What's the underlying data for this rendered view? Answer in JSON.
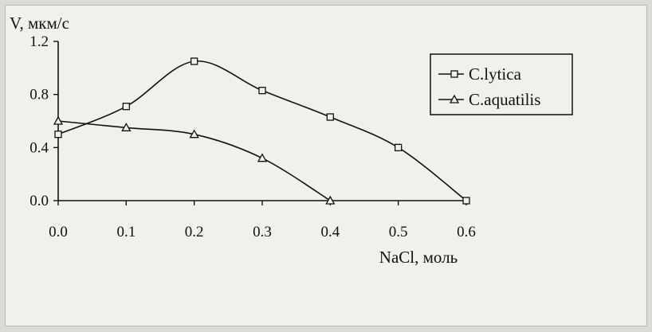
{
  "chart_data": {
    "type": "line",
    "ylabel": "V, мкм/с",
    "xlabel": "NaCl, моль",
    "xlim": [
      0.0,
      0.6
    ],
    "ylim": [
      0.0,
      1.2
    ],
    "x_ticks": [
      "0.0",
      "0.1",
      "0.2",
      "0.3",
      "0.4",
      "0.5",
      "0.6"
    ],
    "y_ticks": [
      "0.0",
      "0.4",
      "0.8",
      "1.2"
    ],
    "grid": false,
    "legend_position": "top-right",
    "series": [
      {
        "name": "C.lytica",
        "marker": "square",
        "x": [
          0.0,
          0.1,
          0.2,
          0.3,
          0.4,
          0.5,
          0.6
        ],
        "values": [
          0.5,
          0.71,
          1.05,
          0.83,
          0.63,
          0.4,
          0.0
        ]
      },
      {
        "name": "C.aquatilis",
        "marker": "triangle",
        "x": [
          0.0,
          0.1,
          0.2,
          0.3,
          0.4
        ],
        "values": [
          0.6,
          0.55,
          0.5,
          0.32,
          0.0
        ]
      }
    ]
  }
}
